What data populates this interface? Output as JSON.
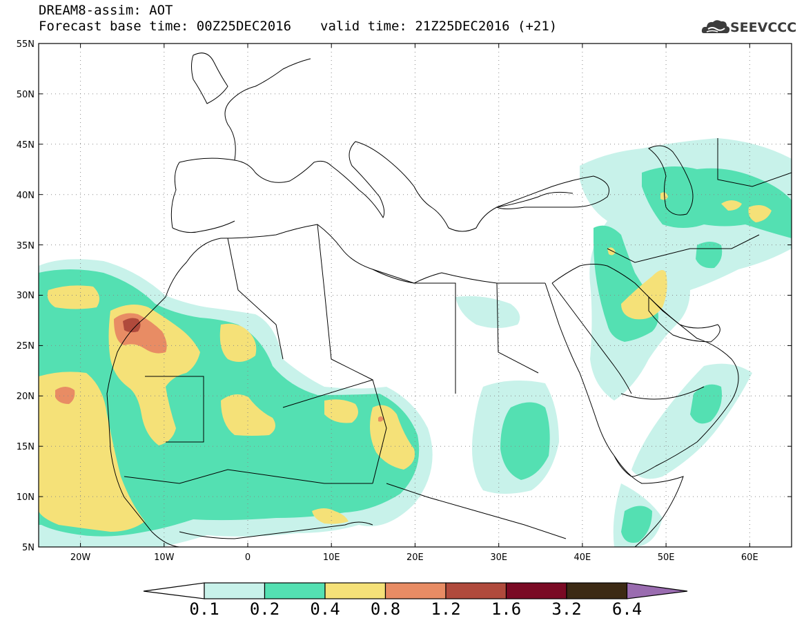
{
  "header": {
    "title": "DREAM8-assim: AOT",
    "base_time": "Forecast base time: 00Z25DEC2016",
    "valid_time": "valid time: 21Z25DEC2016 (+21)"
  },
  "logo": {
    "text": "SEEVCCC",
    "icon": "cloud-icon"
  },
  "map": {
    "lat_labels": [
      "55N",
      "50N",
      "45N",
      "40N",
      "35N",
      "30N",
      "25N",
      "20N",
      "15N",
      "10N",
      "5N"
    ],
    "lon_labels": [
      "20W",
      "10W",
      "0",
      "10E",
      "20E",
      "30E",
      "40E",
      "50E",
      "60E"
    ],
    "lon_range": [
      -25,
      65
    ],
    "lat_range": [
      5,
      55
    ],
    "grid": "dotted"
  },
  "colorbar": {
    "labels": [
      "0.1",
      "0.2",
      "0.4",
      "0.8",
      "1.2",
      "1.6",
      "3.2",
      "6.4"
    ],
    "colors": [
      "#c8f2ea",
      "#54e0b2",
      "#f5e178",
      "#e88c64",
      "#b04a3c",
      "#7a0a24",
      "#3c2a14",
      "#9a6cb0"
    ]
  }
}
